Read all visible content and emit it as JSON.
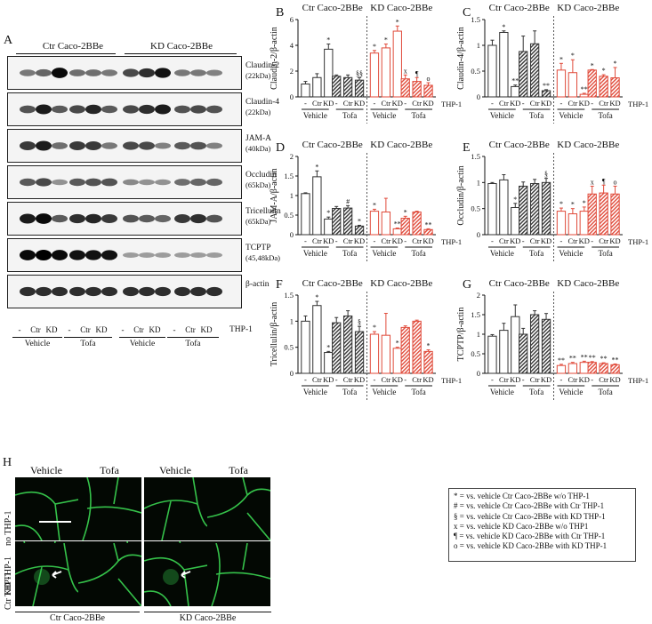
{
  "panels": {
    "a": "A",
    "b": "B",
    "c": "C",
    "d": "D",
    "e": "E",
    "f": "F",
    "g": "G",
    "h": "H"
  },
  "groups": {
    "ctr": "Ctr Caco-2BBe",
    "kd": "KD Caco-2BBe"
  },
  "blot": {
    "bands": [
      {
        "name": "Claudin-2",
        "size": "(22kDa)"
      },
      {
        "name": "Claudin-4",
        "size": "(22kDa)"
      },
      {
        "name": "JAM-A",
        "size": "(40kDa)"
      },
      {
        "name": "Occludin",
        "size": "(65kDa)"
      },
      {
        "name": "Tricellulin",
        "size": "(65kDa)"
      },
      {
        "name": "TCPTP",
        "size": "(45,48kDa)"
      },
      {
        "name": "β-actin",
        "size": ""
      }
    ],
    "lane_labels": [
      "-",
      "Ctr",
      "KD",
      "-",
      "Ctr",
      "KD",
      "-",
      "Ctr",
      "KD",
      "-",
      "Ctr",
      "KD"
    ],
    "treatments": [
      "Vehicle",
      "Tofa",
      "Vehicle",
      "Tofa"
    ],
    "thp1": "THP-1",
    "intensity": [
      [
        0.35,
        0.45,
        0.95,
        0.4,
        0.4,
        0.35,
        0.6,
        0.75,
        0.9,
        0.35,
        0.35,
        0.3
      ],
      [
        0.55,
        0.85,
        0.5,
        0.6,
        0.8,
        0.5,
        0.6,
        0.75,
        0.85,
        0.55,
        0.6,
        0.55
      ],
      [
        0.7,
        0.85,
        0.4,
        0.7,
        0.7,
        0.35,
        0.6,
        0.6,
        0.3,
        0.5,
        0.55,
        0.3
      ],
      [
        0.5,
        0.6,
        0.2,
        0.5,
        0.55,
        0.55,
        0.25,
        0.2,
        0.2,
        0.4,
        0.45,
        0.45
      ],
      [
        0.85,
        0.95,
        0.5,
        0.75,
        0.8,
        0.7,
        0.55,
        0.5,
        0.45,
        0.7,
        0.75,
        0.55
      ],
      [
        0.95,
        1.0,
        0.95,
        0.9,
        0.9,
        0.9,
        0.15,
        0.15,
        0.15,
        0.15,
        0.15,
        0.15
      ],
      [
        0.75,
        0.75,
        0.75,
        0.75,
        0.75,
        0.75,
        0.75,
        0.75,
        0.75,
        0.75,
        0.75,
        0.75
      ]
    ]
  },
  "chart_data": [
    {
      "panel": "B",
      "type": "bar",
      "ylabel": "Claudin-2/β-actin",
      "ylim": [
        0,
        6
      ],
      "yticks": [
        0,
        2,
        4,
        6
      ],
      "categories": [
        "-",
        "Ctr",
        "KD",
        "-",
        "Ctr",
        "KD",
        "-",
        "Ctr",
        "KD",
        "-",
        "Ctr",
        "KD"
      ],
      "values": [
        1.0,
        1.5,
        3.7,
        1.6,
        1.5,
        1.3,
        3.4,
        3.8,
        5.1,
        1.4,
        1.2,
        0.9
      ],
      "errors": [
        0.2,
        0.3,
        0.4,
        0.1,
        0.2,
        0.2,
        0.2,
        0.3,
        0.4,
        0.3,
        0.3,
        0.2
      ],
      "marks": [
        "",
        "",
        "*",
        "",
        "",
        "§§",
        "*",
        "*",
        "*",
        "x",
        "¶",
        "o"
      ]
    },
    {
      "panel": "C",
      "type": "bar",
      "ylabel": "Claudin-4/β-actin",
      "ylim": [
        0,
        1.5
      ],
      "yticks": [
        0,
        0.5,
        1,
        1.5
      ],
      "categories": [
        "-",
        "Ctr",
        "KD",
        "-",
        "Ctr",
        "KD",
        "-",
        "Ctr",
        "KD",
        "-",
        "Ctr",
        "KD"
      ],
      "values": [
        1.0,
        1.25,
        0.2,
        0.88,
        1.03,
        0.12,
        0.52,
        0.47,
        0.05,
        0.52,
        0.4,
        0.37
      ],
      "errors": [
        0.1,
        0.03,
        0.03,
        0.3,
        0.25,
        0.02,
        0.13,
        0.25,
        0.02,
        0.01,
        0.03,
        0.2
      ],
      "marks": [
        "",
        "*",
        "**",
        "",
        "",
        "**",
        "*",
        "*",
        "**",
        "*",
        "*",
        "*"
      ]
    },
    {
      "panel": "D",
      "type": "bar",
      "ylabel": "JAM-A/β-actin",
      "ylim": [
        0,
        2
      ],
      "yticks": [
        0,
        0.5,
        1,
        1.5,
        2
      ],
      "categories": [
        "-",
        "Ctr",
        "KD",
        "-",
        "Ctr",
        "KD",
        "-",
        "Ctr",
        "KD",
        "-",
        "Ctr",
        "KD"
      ],
      "values": [
        1.05,
        1.48,
        0.4,
        0.67,
        0.68,
        0.22,
        0.6,
        0.58,
        0.15,
        0.42,
        0.58,
        0.13
      ],
      "errors": [
        0.02,
        0.15,
        0.05,
        0.05,
        0.06,
        0.02,
        0.05,
        0.35,
        0.02,
        0.05,
        0.02,
        0.02
      ],
      "marks": [
        "",
        "*",
        "*",
        "",
        "#",
        "*",
        "*",
        "",
        "**",
        "*",
        "",
        "**"
      ]
    },
    {
      "panel": "E",
      "type": "bar",
      "ylabel": "Occludin/β-actin",
      "ylim": [
        0,
        1.5
      ],
      "yticks": [
        0,
        0.5,
        1,
        1.5
      ],
      "categories": [
        "-",
        "Ctr",
        "KD",
        "-",
        "Ctr",
        "KD",
        "-",
        "Ctr",
        "KD",
        "-",
        "Ctr",
        "KD"
      ],
      "values": [
        0.98,
        1.05,
        0.52,
        0.93,
        0.98,
        1.0,
        0.45,
        0.4,
        0.45,
        0.78,
        0.8,
        0.78
      ],
      "errors": [
        0.02,
        0.1,
        0.08,
        0.08,
        0.08,
        0.08,
        0.06,
        0.1,
        0.08,
        0.15,
        0.15,
        0.15
      ],
      "marks": [
        "",
        "",
        "*",
        "",
        "",
        "§",
        "*",
        "*",
        "*",
        "x",
        "¶",
        "o"
      ]
    },
    {
      "panel": "F",
      "type": "bar",
      "ylabel": "Tricellulin/β-actin",
      "ylim": [
        0,
        1.5
      ],
      "yticks": [
        0,
        0.5,
        1,
        1.5
      ],
      "categories": [
        "-",
        "Ctr",
        "KD",
        "-",
        "Ctr",
        "KD",
        "-",
        "Ctr",
        "KD",
        "-",
        "Ctr",
        "KD"
      ],
      "values": [
        1.0,
        1.3,
        0.4,
        0.97,
        1.1,
        0.8,
        0.75,
        0.73,
        0.48,
        0.88,
        1.0,
        0.42
      ],
      "errors": [
        0.1,
        0.08,
        0.02,
        0.1,
        0.1,
        0.1,
        0.05,
        0.42,
        0.02,
        0.03,
        0.02,
        0.03
      ],
      "marks": [
        "",
        "*",
        "*",
        "",
        "",
        "§",
        "*",
        "",
        "*",
        "",
        "",
        "*"
      ]
    },
    {
      "panel": "G",
      "type": "bar",
      "ylabel": "TCPTP/β-actin",
      "ylim": [
        0,
        2
      ],
      "yticks": [
        0,
        0.5,
        1,
        1.5,
        2
      ],
      "categories": [
        "-",
        "Ctr",
        "KD",
        "-",
        "Ctr",
        "KD",
        "-",
        "Ctr",
        "KD",
        "-",
        "Ctr",
        "KD"
      ],
      "values": [
        0.95,
        1.1,
        1.45,
        1.0,
        1.5,
        1.38,
        0.2,
        0.25,
        0.28,
        0.28,
        0.25,
        0.22
      ],
      "errors": [
        0.04,
        0.18,
        0.3,
        0.15,
        0.1,
        0.15,
        0.03,
        0.03,
        0.03,
        0.02,
        0.02,
        0.02
      ],
      "marks": [
        "",
        "",
        "",
        "",
        "",
        "",
        "**",
        "**",
        "**",
        "**",
        "**",
        "**"
      ]
    }
  ],
  "chart_common": {
    "treatments": [
      "Vehicle",
      "Tofa",
      "Vehicle",
      "Tofa"
    ],
    "thp1": "THP-1"
  },
  "legend": [
    "* = vs. vehicle Ctr Caco-2BBe w/o THP-1",
    "# = vs. vehicle Ctr Caco-2BBe with Ctr THP-1",
    "§ = vs. vehicle Ctr Caco-2BBe with KD THP-1",
    "x = vs. vehicle KD Caco-2BBe w/o THP1",
    "¶ = vs. vehicle KD Caco-2BBe with Ctr THP-1",
    "o = vs. vehicle KD Caco-2BBe with KD THP-1"
  ],
  "micro": {
    "cols": [
      "Vehicle",
      "Tofa",
      "Vehicle",
      "Tofa"
    ],
    "rows": [
      "no THP-1",
      "Ctr THP-1",
      "KD THP-1"
    ],
    "bottom": [
      "Ctr Caco-2BBe",
      "KD Caco-2BBe"
    ]
  },
  "colors": {
    "ctr_bar": "#333333",
    "kd_bar": "#e04a3a",
    "fluor": "#35c24a"
  }
}
